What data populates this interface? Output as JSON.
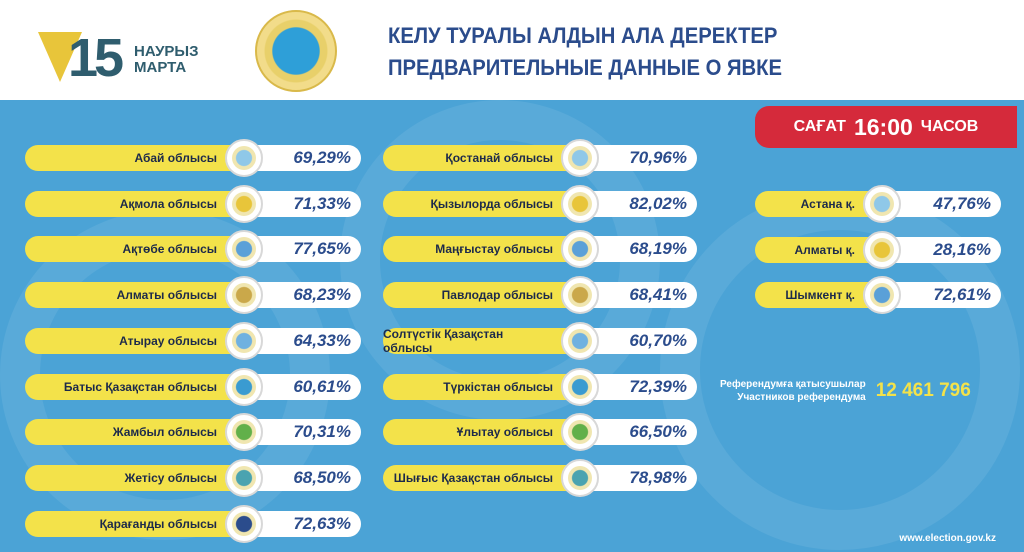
{
  "logo": {
    "number": "15",
    "line1": "НАУРЫЗ",
    "line2": "МАРТА"
  },
  "title": {
    "kz": "КЕЛУ ТУРАЛЫ АЛДЫН АЛА ДЕРЕКТЕР",
    "ru": "ПРЕДВАРИТЕЛЬНЫЕ ДАННЫЕ О ЯВКЕ"
  },
  "time_badge": {
    "pre": "САҒАТ",
    "time": "16:00",
    "post": "ЧАСОВ"
  },
  "colors": {
    "panel": "#4ba3d6",
    "label": "#f3e24a",
    "badge": "#d52a3b",
    "value": "#2b4c8c"
  },
  "column1": [
    {
      "region": "Абай облысы",
      "turnout": "69,29%"
    },
    {
      "region": "Ақмола облысы",
      "turnout": "71,33%"
    },
    {
      "region": "Ақтөбе облысы",
      "turnout": "77,65%"
    },
    {
      "region": "Алматы облысы",
      "turnout": "68,23%"
    },
    {
      "region": "Атырау облысы",
      "turnout": "64,33%"
    },
    {
      "region": "Батыс Қазақстан облысы",
      "turnout": "60,61%"
    },
    {
      "region": "Жамбыл облысы",
      "turnout": "70,31%"
    },
    {
      "region": "Жетісу облысы",
      "turnout": "68,50%"
    },
    {
      "region": "Қарағанды облысы",
      "turnout": "72,63%"
    }
  ],
  "column2": [
    {
      "region": "Қостанай облысы",
      "turnout": "70,96%"
    },
    {
      "region": "Қызылорда облысы",
      "turnout": "82,02%"
    },
    {
      "region": "Маңғыстау облысы",
      "turnout": "68,19%"
    },
    {
      "region": "Павлодар облысы",
      "turnout": "68,41%"
    },
    {
      "region": "Солтүстік Қазақстан облысы",
      "turnout": "60,70%"
    },
    {
      "region": "Түркістан облысы",
      "turnout": "72,39%"
    },
    {
      "region": "Ұлытау облысы",
      "turnout": "66,50%"
    },
    {
      "region": "Шығыс Қазақстан облысы",
      "turnout": "78,98%"
    }
  ],
  "cities": [
    {
      "region": "Астана қ.",
      "turnout": "47,76%"
    },
    {
      "region": "Алматы қ.",
      "turnout": "28,16%"
    },
    {
      "region": "Шымкент қ.",
      "turnout": "72,61%"
    }
  ],
  "participants": {
    "label_kz": "Референдумға қатысушылар",
    "label_ru": "Участников референдума",
    "value": "12 461 796"
  },
  "website": "www.election.gov.kz"
}
